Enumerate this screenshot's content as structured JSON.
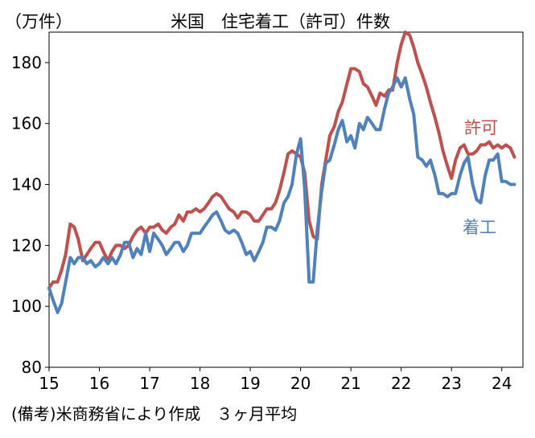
{
  "chart_data": {
    "type": "line",
    "title": "米国　住宅着工（許可）件数",
    "ylabel": "（万件）",
    "note": "(備考)米商務省により作成　３ヶ月平均",
    "ylim": [
      80,
      190
    ],
    "yticks": [
      80,
      100,
      120,
      140,
      160,
      180
    ],
    "xlim": [
      2015,
      2024.42
    ],
    "xticks": [
      {
        "value": 2015,
        "label": "15"
      },
      {
        "value": 2016,
        "label": "16"
      },
      {
        "value": 2017,
        "label": "17"
      },
      {
        "value": 2018,
        "label": "18"
      },
      {
        "value": 2019,
        "label": "19"
      },
      {
        "value": 2020,
        "label": "20"
      },
      {
        "value": 2021,
        "label": "21"
      },
      {
        "value": 2022,
        "label": "22"
      },
      {
        "value": 2023,
        "label": "23"
      },
      {
        "value": 2024,
        "label": "24"
      }
    ],
    "series": [
      {
        "name": "許可",
        "color": "#c0504d",
        "x": [
          2015.0,
          2015.08,
          2015.17,
          2015.25,
          2015.33,
          2015.42,
          2015.5,
          2015.58,
          2015.67,
          2015.75,
          2015.83,
          2015.92,
          2016.0,
          2016.08,
          2016.17,
          2016.25,
          2016.33,
          2016.42,
          2016.5,
          2016.58,
          2016.67,
          2016.75,
          2016.83,
          2016.92,
          2017.0,
          2017.08,
          2017.17,
          2017.25,
          2017.33,
          2017.42,
          2017.5,
          2017.58,
          2017.67,
          2017.75,
          2017.83,
          2017.92,
          2018.0,
          2018.08,
          2018.17,
          2018.25,
          2018.33,
          2018.42,
          2018.5,
          2018.58,
          2018.67,
          2018.75,
          2018.83,
          2018.92,
          2019.0,
          2019.08,
          2019.17,
          2019.25,
          2019.33,
          2019.42,
          2019.5,
          2019.58,
          2019.67,
          2019.75,
          2019.83,
          2019.92,
          2020.0,
          2020.08,
          2020.17,
          2020.25,
          2020.33,
          2020.42,
          2020.5,
          2020.58,
          2020.67,
          2020.75,
          2020.83,
          2020.92,
          2021.0,
          2021.08,
          2021.17,
          2021.25,
          2021.33,
          2021.42,
          2021.5,
          2021.58,
          2021.67,
          2021.75,
          2021.83,
          2021.92,
          2022.0,
          2022.08,
          2022.17,
          2022.25,
          2022.33,
          2022.42,
          2022.5,
          2022.58,
          2022.67,
          2022.75,
          2022.83,
          2022.92,
          2023.0,
          2023.08,
          2023.17,
          2023.25,
          2023.33,
          2023.42,
          2023.5,
          2023.58,
          2023.67,
          2023.75,
          2023.83,
          2023.92,
          2024.0,
          2024.08,
          2024.17,
          2024.25
        ],
        "values": [
          106,
          108,
          108,
          112,
          117,
          127,
          126,
          122,
          115,
          117,
          119,
          121,
          121,
          118,
          115,
          118,
          120,
          120,
          119,
          120,
          123,
          125,
          126,
          124,
          126,
          126,
          127,
          125,
          124,
          126,
          127,
          130,
          128,
          131,
          131,
          132,
          131,
          132,
          134,
          136,
          137,
          136,
          134,
          132,
          131,
          129,
          131,
          131,
          130,
          128,
          128,
          130,
          132,
          132,
          134,
          138,
          144,
          150,
          151,
          150,
          149,
          144,
          128,
          123,
          122,
          140,
          148,
          156,
          159,
          164,
          167,
          173,
          178,
          178,
          177,
          173,
          172,
          169,
          166,
          170,
          169,
          171,
          171,
          180,
          186,
          190,
          189,
          185,
          180,
          176,
          172,
          167,
          162,
          157,
          151,
          146,
          142,
          148,
          152,
          153,
          150,
          150,
          151,
          153,
          153,
          154,
          152,
          153,
          152,
          153,
          152,
          149
        ]
      },
      {
        "name": "着工",
        "color": "#4f81bd",
        "x": [
          2015.0,
          2015.08,
          2015.17,
          2015.25,
          2015.33,
          2015.42,
          2015.5,
          2015.58,
          2015.67,
          2015.75,
          2015.83,
          2015.92,
          2016.0,
          2016.08,
          2016.17,
          2016.25,
          2016.33,
          2016.42,
          2016.5,
          2016.58,
          2016.67,
          2016.75,
          2016.83,
          2016.92,
          2017.0,
          2017.08,
          2017.17,
          2017.25,
          2017.33,
          2017.42,
          2017.5,
          2017.58,
          2017.67,
          2017.75,
          2017.83,
          2017.92,
          2018.0,
          2018.08,
          2018.17,
          2018.25,
          2018.33,
          2018.42,
          2018.5,
          2018.58,
          2018.67,
          2018.75,
          2018.83,
          2018.92,
          2019.0,
          2019.08,
          2019.17,
          2019.25,
          2019.33,
          2019.42,
          2019.5,
          2019.58,
          2019.67,
          2019.75,
          2019.83,
          2019.92,
          2020.0,
          2020.08,
          2020.17,
          2020.25,
          2020.33,
          2020.42,
          2020.5,
          2020.58,
          2020.67,
          2020.75,
          2020.83,
          2020.92,
          2021.0,
          2021.08,
          2021.17,
          2021.25,
          2021.33,
          2021.42,
          2021.5,
          2021.58,
          2021.67,
          2021.75,
          2021.83,
          2021.92,
          2022.0,
          2022.08,
          2022.17,
          2022.25,
          2022.33,
          2022.42,
          2022.5,
          2022.58,
          2022.67,
          2022.75,
          2022.83,
          2022.92,
          2023.0,
          2023.08,
          2023.17,
          2023.25,
          2023.33,
          2023.42,
          2023.5,
          2023.58,
          2023.67,
          2023.75,
          2023.83,
          2023.92,
          2024.0,
          2024.08,
          2024.17,
          2024.25
        ],
        "values": [
          106,
          102,
          98,
          101,
          108,
          116,
          114,
          116,
          116,
          114,
          115,
          113,
          114,
          116,
          114,
          116,
          114,
          117,
          121,
          121,
          116,
          119,
          117,
          124,
          118,
          124,
          122,
          120,
          117,
          119,
          121,
          121,
          118,
          120,
          124,
          124,
          124,
          126,
          128,
          130,
          131,
          128,
          125,
          124,
          125,
          124,
          121,
          117,
          118,
          115,
          118,
          121,
          126,
          126,
          125,
          128,
          134,
          136,
          140,
          150,
          155,
          139,
          108,
          108,
          125,
          138,
          147,
          148,
          153,
          158,
          161,
          154,
          156,
          152,
          160,
          158,
          162,
          160,
          158,
          158,
          165,
          170,
          172,
          175,
          172,
          175,
          168,
          163,
          149,
          148,
          146,
          148,
          143,
          137,
          137,
          136,
          137,
          137,
          143,
          147,
          149,
          140,
          135,
          134,
          143,
          148,
          148,
          150,
          141,
          141,
          140,
          140
        ]
      }
    ]
  }
}
